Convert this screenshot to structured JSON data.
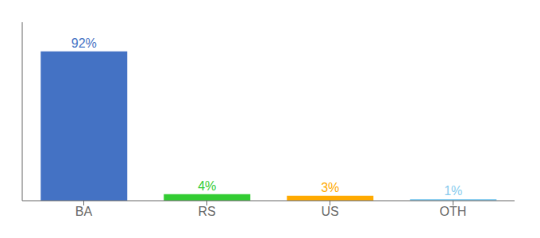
{
  "chart_data": {
    "type": "bar",
    "categories": [
      "BA",
      "RS",
      "US",
      "OTH"
    ],
    "values": [
      92,
      4,
      3,
      1
    ],
    "value_labels": [
      "92%",
      "4%",
      "3%",
      "1%"
    ],
    "data_labels": true,
    "colors": [
      "#4472c4",
      "#33cc33",
      "#ffaa00",
      "#88ccee"
    ],
    "ylim": [
      0,
      110
    ],
    "tick_labels": "x",
    "grid": false
  }
}
